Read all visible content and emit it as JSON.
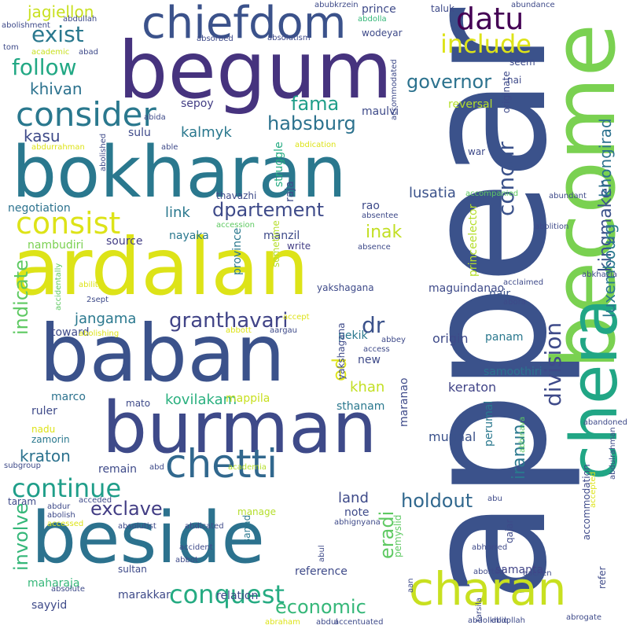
{
  "words": [
    {
      "text": "appear",
      "color": "#3b528b",
      "vertical": true
    },
    {
      "text": "begum",
      "color": "#46337e",
      "vertical": false
    },
    {
      "text": "become",
      "color": "#7ad151",
      "vertical": true
    },
    {
      "text": "ardalan",
      "color": "#dde318",
      "vertical": false
    },
    {
      "text": "bokharan",
      "color": "#2a788e",
      "vertical": false
    },
    {
      "text": "baban",
      "color": "#3b528b",
      "vertical": false
    },
    {
      "text": "burman",
      "color": "#3e4a89",
      "vertical": false
    },
    {
      "text": "beside",
      "color": "#2c728e",
      "vertical": false
    },
    {
      "text": "chera",
      "color": "#21a685",
      "vertical": true
    },
    {
      "text": "charan",
      "color": "#c8e020",
      "vertical": false
    },
    {
      "text": "chiefdom",
      "color": "#3b528b",
      "vertical": false
    },
    {
      "text": "chetti",
      "color": "#31688e",
      "vertical": false
    },
    {
      "text": "consider",
      "color": "#2a788e",
      "vertical": false
    },
    {
      "text": "consist",
      "color": "#dde318",
      "vertical": false
    },
    {
      "text": "continue",
      "color": "#1f9e89",
      "vertical": false
    },
    {
      "text": "conquest",
      "color": "#25ab82",
      "vertical": false
    },
    {
      "text": "division",
      "color": "#3e4a89",
      "vertical": true
    },
    {
      "text": "concur",
      "color": "#3b528b",
      "vertical": true
    },
    {
      "text": "datu",
      "color": "#440154",
      "vertical": false
    },
    {
      "text": "include",
      "color": "#dde318",
      "vertical": false
    },
    {
      "text": "governor",
      "color": "#2c728e",
      "vertical": false
    },
    {
      "text": "exist",
      "color": "#2a788e",
      "vertical": false
    },
    {
      "text": "follow",
      "color": "#22a884",
      "vertical": false
    },
    {
      "text": "habsburg",
      "color": "#2c728e",
      "vertical": false
    },
    {
      "text": "dpartement",
      "color": "#3e4a89",
      "vertical": false
    },
    {
      "text": "fama",
      "color": "#1f9e89",
      "vertical": false
    },
    {
      "text": "granthavari",
      "color": "#414487",
      "vertical": false
    },
    {
      "text": "exclave",
      "color": "#433e85",
      "vertical": false
    },
    {
      "text": "holdout",
      "color": "#31688e",
      "vertical": false
    },
    {
      "text": "economic",
      "color": "#35b779",
      "vertical": false
    },
    {
      "text": "indicate",
      "color": "#5ec962",
      "vertical": true
    },
    {
      "text": "involve",
      "color": "#35b779",
      "vertical": true
    },
    {
      "text": "inak",
      "color": "#c2df23",
      "vertical": false
    },
    {
      "text": "dr",
      "color": "#3b528b",
      "vertical": false
    },
    {
      "text": "ed",
      "color": "#dde318",
      "vertical": true
    },
    {
      "text": "eradi",
      "color": "#5ec962",
      "vertical": true
    },
    {
      "text": "iranun",
      "color": "#2a788e",
      "vertical": true
    },
    {
      "text": "kingmaker",
      "color": "#3b528b",
      "vertical": true
    },
    {
      "text": "khongirad",
      "color": "#2c728e",
      "vertical": true
    },
    {
      "text": "luxembourg",
      "color": "#2a788e",
      "vertical": true
    },
    {
      "text": "jagiellon",
      "color": "#c8e020",
      "vertical": false
    },
    {
      "text": "khivan",
      "color": "#2c728e",
      "vertical": false
    },
    {
      "text": "kasu",
      "color": "#3e4a89",
      "vertical": false
    },
    {
      "text": "kalmyk",
      "color": "#2a788e",
      "vertical": false
    },
    {
      "text": "sepoy",
      "color": "#433e85",
      "vertical": false
    },
    {
      "text": "maulvi",
      "color": "#3e4a89",
      "vertical": false
    },
    {
      "text": "reversal",
      "color": "#b5de2b",
      "vertical": false
    },
    {
      "text": "lusatia",
      "color": "#3b528b",
      "vertical": false
    },
    {
      "text": "jangama",
      "color": "#2a788e",
      "vertical": false
    },
    {
      "text": "kovilakam",
      "color": "#2ab07f",
      "vertical": false
    },
    {
      "text": "keraton",
      "color": "#414487",
      "vertical": false
    },
    {
      "text": "kraton",
      "color": "#2c728e",
      "vertical": false
    },
    {
      "text": "khan",
      "color": "#c2df23",
      "vertical": false
    },
    {
      "text": "land",
      "color": "#3e4a89",
      "vertical": false
    },
    {
      "text": "link",
      "color": "#2a788e",
      "vertical": false
    },
    {
      "text": "nayaka",
      "color": "#2a788e",
      "vertical": false
    },
    {
      "text": "negotiation",
      "color": "#2c728e",
      "vertical": false
    },
    {
      "text": "nambudiri",
      "color": "#7ad151",
      "vertical": false
    },
    {
      "text": "source",
      "color": "#433e85",
      "vertical": false
    },
    {
      "text": "manzil",
      "color": "#3e4a89",
      "vertical": false
    },
    {
      "text": "write",
      "color": "#433e85",
      "vertical": false
    },
    {
      "text": "maguindanao",
      "color": "#3e4a89",
      "vertical": false
    },
    {
      "text": "origin",
      "color": "#3e4a89",
      "vertical": false
    },
    {
      "text": "samoothiri",
      "color": "#2c728e",
      "vertical": false
    },
    {
      "text": "panam",
      "color": "#2a788e",
      "vertical": false
    },
    {
      "text": "nair",
      "color": "#3b528b",
      "vertical": false
    },
    {
      "text": "mughal",
      "color": "#3b528b",
      "vertical": false
    },
    {
      "text": "samanta",
      "color": "#414487",
      "vertical": false
    },
    {
      "text": "note",
      "color": "#3e4a89",
      "vertical": false
    },
    {
      "text": "manage",
      "color": "#b5de2b",
      "vertical": false
    },
    {
      "text": "reference",
      "color": "#3e4a89",
      "vertical": false
    },
    {
      "text": "relation",
      "color": "#3e4a89",
      "vertical": false
    },
    {
      "text": "marakkar",
      "color": "#3e4a89",
      "vertical": false
    },
    {
      "text": "maharaja",
      "color": "#35b779",
      "vertical": false
    },
    {
      "text": "sayyid",
      "color": "#3e4a89",
      "vertical": false
    },
    {
      "text": "sultan",
      "color": "#3e4a89",
      "vertical": false
    },
    {
      "text": "mato",
      "color": "#3e4a89",
      "vertical": false
    },
    {
      "text": "mappila",
      "color": "#c8e020",
      "vertical": false
    },
    {
      "text": "sthanam",
      "color": "#2a788e",
      "vertical": false
    },
    {
      "text": "pekik",
      "color": "#2a788e",
      "vertical": false
    },
    {
      "text": "new",
      "color": "#3e4a89",
      "vertical": false
    },
    {
      "text": "marco",
      "color": "#2c728e",
      "vertical": false
    },
    {
      "text": "ruler",
      "color": "#3e4a89",
      "vertical": false
    },
    {
      "text": "nadu",
      "color": "#dde318",
      "vertical": false
    },
    {
      "text": "zamorin",
      "color": "#2a788e",
      "vertical": false
    },
    {
      "text": "remain",
      "color": "#3e4a89",
      "vertical": false
    },
    {
      "text": "prince",
      "color": "#3e4a89",
      "vertical": false
    },
    {
      "text": "wodeyar",
      "color": "#3e4a89",
      "vertical": false
    },
    {
      "text": "seem",
      "color": "#3e4a89",
      "vertical": false
    },
    {
      "text": "nai",
      "color": "#3e4a89",
      "vertical": false
    },
    {
      "text": "taluk",
      "color": "#3e4a89",
      "vertical": false
    },
    {
      "text": "abundance",
      "color": "#3e4a89",
      "vertical": false
    },
    {
      "text": "abubkrzein",
      "color": "#3e4a89",
      "vertical": false
    },
    {
      "text": "abdolla",
      "color": "#35b779",
      "vertical": false
    },
    {
      "text": "abdullah",
      "color": "#3e4a89",
      "vertical": false
    },
    {
      "text": "abolishment",
      "color": "#3e4a89",
      "vertical": false
    },
    {
      "text": "tom",
      "color": "#3e4a89",
      "vertical": false
    },
    {
      "text": "academic",
      "color": "#c8e020",
      "vertical": false
    },
    {
      "text": "abad",
      "color": "#3e4a89",
      "vertical": false
    },
    {
      "text": "absorbed",
      "color": "#3e4a89",
      "vertical": false
    },
    {
      "text": "absolutism",
      "color": "#3e4a89",
      "vertical": false
    },
    {
      "text": "accommodated",
      "color": "#3e4a89",
      "vertical": true
    },
    {
      "text": "abida",
      "color": "#3e4a89",
      "vertical": false
    },
    {
      "text": "sulu",
      "color": "#3e4a89",
      "vertical": false
    },
    {
      "text": "able",
      "color": "#3e4a89",
      "vertical": false
    },
    {
      "text": "abdication",
      "color": "#dde318",
      "vertical": false
    },
    {
      "text": "abdurrahman",
      "color": "#dde318",
      "vertical": false
    },
    {
      "text": "abolished",
      "color": "#3e4a89",
      "vertical": true
    },
    {
      "text": "originate",
      "color": "#3e4a89",
      "vertical": true
    },
    {
      "text": "war",
      "color": "#3e4a89",
      "vertical": false
    },
    {
      "text": "abundant",
      "color": "#3e4a89",
      "vertical": false
    },
    {
      "text": "thavazhi",
      "color": "#3e4a89",
      "vertical": false
    },
    {
      "text": "rao",
      "color": "#3e4a89",
      "vertical": false
    },
    {
      "text": "absentee",
      "color": "#3e4a89",
      "vertical": false
    },
    {
      "text": "accession",
      "color": "#5ec962",
      "vertical": false
    },
    {
      "text": "accompanied",
      "color": "#5ec962",
      "vertical": false
    },
    {
      "text": "abolition",
      "color": "#3e4a89",
      "vertical": false
    },
    {
      "text": "absence",
      "color": "#3e4a89",
      "vertical": false
    },
    {
      "text": "sometime",
      "color": "#b5de2b",
      "vertical": true
    },
    {
      "text": "struggle",
      "color": "#25ab82",
      "vertical": true
    },
    {
      "text": "raja",
      "color": "#3e4a89",
      "vertical": true
    },
    {
      "text": "province",
      "color": "#2a788e",
      "vertical": true
    },
    {
      "text": "yakshagana",
      "color": "#3e4a89",
      "vertical": false
    },
    {
      "text": "yakshagana",
      "color": "#3e4a89",
      "vertical": true
    },
    {
      "text": "princeelector",
      "color": "#b5de2b",
      "vertical": true
    },
    {
      "text": "accidentally",
      "color": "#5ec962",
      "vertical": true
    },
    {
      "text": "ability",
      "color": "#dde318",
      "vertical": false
    },
    {
      "text": "2sept",
      "color": "#3e4a89",
      "vertical": false
    },
    {
      "text": "abkhazia",
      "color": "#3e4a89",
      "vertical": false
    },
    {
      "text": "acclaimed",
      "color": "#3e4a89",
      "vertical": false
    },
    {
      "text": "abora",
      "color": "#3e4a89",
      "vertical": false
    },
    {
      "text": "toward",
      "color": "#3e4a89",
      "vertical": false
    },
    {
      "text": "abolishing",
      "color": "#dde318",
      "vertical": false
    },
    {
      "text": "abbott",
      "color": "#dde318",
      "vertical": false
    },
    {
      "text": "aargau",
      "color": "#3e4a89",
      "vertical": false
    },
    {
      "text": "accept",
      "color": "#dde318",
      "vertical": false
    },
    {
      "text": "abbey",
      "color": "#3e4a89",
      "vertical": false
    },
    {
      "text": "access",
      "color": "#3e4a89",
      "vertical": false
    },
    {
      "text": "maranao",
      "color": "#3e4a89",
      "vertical": true
    },
    {
      "text": "abandoned",
      "color": "#3e4a89",
      "vertical": false
    },
    {
      "text": "abhinava",
      "color": "#5ec962",
      "vertical": true
    },
    {
      "text": "perumal",
      "color": "#2a788e",
      "vertical": true
    },
    {
      "text": "abdulrahman",
      "color": "#3e4a89",
      "vertical": true
    },
    {
      "text": "subgroup",
      "color": "#3e4a89",
      "vertical": false
    },
    {
      "text": "abd",
      "color": "#3e4a89",
      "vertical": false
    },
    {
      "text": "academia",
      "color": "#b5de2b",
      "vertical": false
    },
    {
      "text": "taram",
      "color": "#3e4a89",
      "vertical": false
    },
    {
      "text": "acceded",
      "color": "#3e4a89",
      "vertical": false
    },
    {
      "text": "abdur",
      "color": "#3e4a89",
      "vertical": false
    },
    {
      "text": "abolish",
      "color": "#3e4a89",
      "vertical": false
    },
    {
      "text": "accessed",
      "color": "#dde318",
      "vertical": false
    },
    {
      "text": "absolutist",
      "color": "#3e4a89",
      "vertical": false
    },
    {
      "text": "abdicated",
      "color": "#3e4a89",
      "vertical": false
    },
    {
      "text": "abhignyana",
      "color": "#3e4a89",
      "vertical": false
    },
    {
      "text": "abu",
      "color": "#3e4a89",
      "vertical": false
    },
    {
      "text": "accommodation",
      "color": "#3e4a89",
      "vertical": true
    },
    {
      "text": "accepted",
      "color": "#dde318",
      "vertical": true
    },
    {
      "text": "sanad",
      "color": "#2a788e",
      "vertical": true
    },
    {
      "text": "pemyslid",
      "color": "#5ec962",
      "vertical": true
    },
    {
      "text": "accident",
      "color": "#3e4a89",
      "vertical": false
    },
    {
      "text": "abbot",
      "color": "#3e4a89",
      "vertical": false
    },
    {
      "text": "abhorred",
      "color": "#3e4a89",
      "vertical": false
    },
    {
      "text": "qajar",
      "color": "#3e4a89",
      "vertical": true
    },
    {
      "text": "abul",
      "color": "#3e4a89",
      "vertical": true
    },
    {
      "text": "aan",
      "color": "#3e4a89",
      "vertical": true
    },
    {
      "text": "aborted",
      "color": "#3e4a89",
      "vertical": false
    },
    {
      "text": "aachen",
      "color": "#3e4a89",
      "vertical": false
    },
    {
      "text": "refer",
      "color": "#3e4a89",
      "vertical": true
    },
    {
      "text": "absolute",
      "color": "#3e4a89",
      "vertical": false
    },
    {
      "text": "abraham",
      "color": "#dde318",
      "vertical": false
    },
    {
      "text": "abdul",
      "color": "#3e4a89",
      "vertical": false
    },
    {
      "text": "accentuated",
      "color": "#3e4a89",
      "vertical": false
    },
    {
      "text": "tarsila",
      "color": "#3e4a89",
      "vertical": true
    },
    {
      "text": "abdolkhliq",
      "color": "#3e4a89",
      "vertical": false
    },
    {
      "text": "abdollah",
      "color": "#3e4a89",
      "vertical": false
    },
    {
      "text": "abrogate",
      "color": "#3e4a89",
      "vertical": false
    }
  ]
}
